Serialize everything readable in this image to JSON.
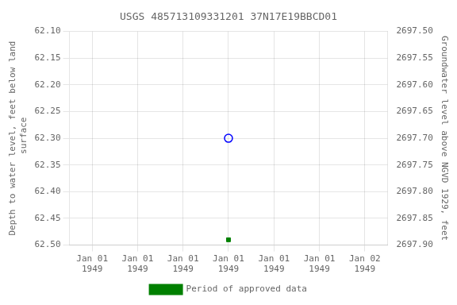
{
  "chart_data": {
    "type": "scatter",
    "title": "USGS 485713109331201 37N17E19BBCD01",
    "ylabel": "Depth to water level, feet below land\n surface",
    "y2label": "Groundwater level above NGVD 1929, feet",
    "categories": [
      "Jan 01\n1949",
      "Jan 01\n1949",
      "Jan 01\n1949",
      "Jan 01\n1949",
      "Jan 01\n1949",
      "Jan 01\n1949",
      "Jan 02\n1949"
    ],
    "series": [
      {
        "color": "blue",
        "marker": "circle",
        "values": [
          null,
          null,
          null,
          62.3,
          null,
          null,
          null
        ]
      },
      {
        "name": "Period of approved data",
        "color": "#008000",
        "marker": "square",
        "values": [
          null,
          null,
          null,
          62.49,
          null,
          null,
          null
        ]
      }
    ],
    "ylim": [
      62.5,
      62.1
    ],
    "yticks": [
      {
        "value": 62.1,
        "label": "62.10"
      },
      62.15,
      {
        "value": 62.2,
        "label": "62.20"
      },
      62.25,
      {
        "value": 62.3,
        "label": "62.30"
      },
      62.35,
      {
        "value": 62.4,
        "label": "62.40"
      },
      62.45,
      {
        "value": 62.5,
        "label": "62.50"
      }
    ],
    "y2lim": [
      2697.9,
      2697.5
    ],
    "y2ticks": [
      {
        "value": 2697.5,
        "label": "2697.50"
      },
      2697.55,
      {
        "value": 2697.6,
        "label": "2697.60"
      },
      2697.65,
      {
        "value": 2697.7,
        "label": "2697.70"
      },
      2697.75,
      {
        "value": 2697.8,
        "label": "2697.80"
      },
      2697.85,
      {
        "value": 2697.9,
        "label": "2697.90"
      }
    ],
    "grid": true,
    "legend": "bottom"
  }
}
